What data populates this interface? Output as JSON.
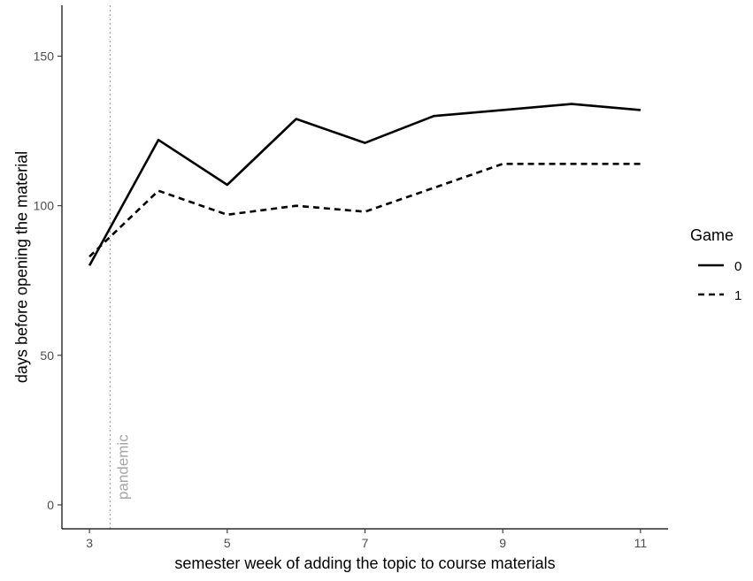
{
  "chart_data": {
    "type": "line",
    "title": "",
    "xlabel": "semester week of adding the topic to course materials",
    "ylabel": "days before opening the material",
    "xlim": [
      2.6,
      11.4
    ],
    "ylim": [
      -8,
      167
    ],
    "xticks": [
      3,
      5,
      7,
      9,
      11
    ],
    "yticks": [
      0,
      50,
      100,
      150
    ],
    "grid": false,
    "legend": {
      "title": "Game",
      "placement": "right"
    },
    "series": [
      {
        "name": "0",
        "line_style": "solid",
        "color": "#000000",
        "x": [
          3,
          4,
          5,
          6,
          7,
          8,
          9,
          10,
          11
        ],
        "y": [
          80,
          122,
          107,
          129,
          121,
          130,
          132,
          134,
          132
        ]
      },
      {
        "name": "1",
        "line_style": "dashed",
        "color": "#000000",
        "x": [
          3,
          4,
          5,
          6,
          7,
          8,
          9,
          10,
          11
        ],
        "y": [
          83,
          105,
          97,
          100,
          98,
          106,
          114,
          114,
          114
        ]
      }
    ],
    "annotations": [
      {
        "text": "pandemic",
        "x": 3.3,
        "style": "dotted-vline",
        "color": "#a6a6a6"
      }
    ]
  }
}
